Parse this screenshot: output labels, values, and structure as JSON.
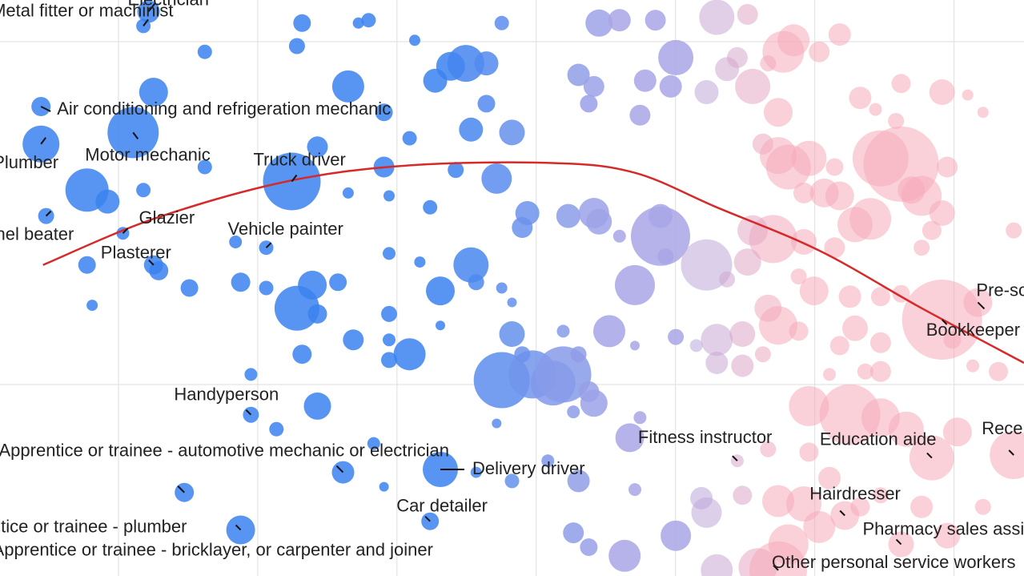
{
  "chart_data": {
    "type": "scatter",
    "title": "",
    "xlabel": "",
    "ylabel": "",
    "xlim": [
      0,
      100
    ],
    "ylim": [
      0,
      100
    ],
    "grid": true,
    "colors": {
      "male_dominated": "#3b82f0",
      "mixed": "#a9a6e6",
      "female_dominated": "#f6a9b9",
      "trend_line": "#d62a2a"
    },
    "trend": [
      [
        4.2,
        54
      ],
      [
        15,
        62
      ],
      [
        28,
        68.5
      ],
      [
        40,
        71.3
      ],
      [
        54,
        71.7
      ],
      [
        62,
        70
      ],
      [
        70,
        64
      ],
      [
        80,
        56.5
      ],
      [
        90,
        46.5
      ],
      [
        100,
        37
      ]
    ],
    "labeled_points": [
      {
        "label": "Electrician",
        "x": 14.5,
        "y": 98,
        "size": 14
      },
      {
        "label": "Metal fitter or machinist",
        "x": 14,
        "y": 95.5,
        "size": 9
      },
      {
        "label": "Air conditioning and refrigeration mechanic",
        "x": 4,
        "y": 81.5,
        "size": 12
      },
      {
        "label": "Motor mechanic",
        "x": 13,
        "y": 77,
        "size": 32
      },
      {
        "label": "Plumber",
        "x": 4,
        "y": 75,
        "size": 23
      },
      {
        "label": "Truck driver",
        "x": 28.5,
        "y": 68.5,
        "size": 36
      },
      {
        "label": "Panel beater",
        "x": 4.5,
        "y": 62.5,
        "size": 10
      },
      {
        "label": "Glazier",
        "x": 12,
        "y": 59.5,
        "size": 8
      },
      {
        "label": "Vehicle painter",
        "x": 26,
        "y": 57,
        "size": 9
      },
      {
        "label": "Plasterer",
        "x": 15,
        "y": 54,
        "size": 12
      },
      {
        "label": "Handyperson",
        "x": 24.5,
        "y": 28,
        "size": 10
      },
      {
        "label": "Apprentice or trainee - automotive mechanic or electrician",
        "x": 33.5,
        "y": 18,
        "size": 14
      },
      {
        "label": "Delivery driver",
        "x": 43,
        "y": 18.5,
        "size": 22
      },
      {
        "label": "Apprentice or trainee - plumber",
        "x": 18,
        "y": 14.5,
        "size": 12
      },
      {
        "label": "Car detailer",
        "x": 42,
        "y": 9.5,
        "size": 11
      },
      {
        "label": "Apprentice or trainee - bricklayer, or carpenter and joiner",
        "x": 23.5,
        "y": 8,
        "size": 18
      },
      {
        "label": "Fitness instructor",
        "x": 72,
        "y": 20,
        "size": 8
      },
      {
        "label": "Education aide",
        "x": 91,
        "y": 20.5,
        "size": 28
      },
      {
        "label": "Receptionist",
        "x": 99,
        "y": 21,
        "size": 30
      },
      {
        "label": "Hairdresser",
        "x": 82.5,
        "y": 10.5,
        "size": 18
      },
      {
        "label": "Pharmacy sales assistant",
        "x": 88,
        "y": 5.5,
        "size": 16
      },
      {
        "label": "Other personal service workers",
        "x": 76,
        "y": 1,
        "size": 36
      },
      {
        "label": "Pre-school teacher",
        "x": 95.5,
        "y": 47.5,
        "size": 18
      },
      {
        "label": "Bookkeeper",
        "x": 92,
        "y": 44.5,
        "size": 50
      }
    ],
    "points": [
      {
        "x": 29.5,
        "y": 96,
        "size": 11
      },
      {
        "x": 36,
        "y": 96.5,
        "size": 9
      },
      {
        "x": 35,
        "y": 96,
        "size": 7
      },
      {
        "x": 40.5,
        "y": 93,
        "size": 7
      },
      {
        "x": 49,
        "y": 96,
        "size": 9
      },
      {
        "x": 58.5,
        "y": 96,
        "size": 17
      },
      {
        "x": 60.5,
        "y": 96.5,
        "size": 14
      },
      {
        "x": 64,
        "y": 96.5,
        "size": 13
      },
      {
        "x": 70,
        "y": 97,
        "size": 22
      },
      {
        "x": 73,
        "y": 97.5,
        "size": 13
      },
      {
        "x": 29,
        "y": 92,
        "size": 10
      },
      {
        "x": 20,
        "y": 91,
        "size": 9
      },
      {
        "x": 44,
        "y": 88.5,
        "size": 18
      },
      {
        "x": 45.5,
        "y": 89,
        "size": 23
      },
      {
        "x": 47.5,
        "y": 89,
        "size": 15
      },
      {
        "x": 42.5,
        "y": 86,
        "size": 15
      },
      {
        "x": 56.5,
        "y": 87,
        "size": 14
      },
      {
        "x": 58,
        "y": 85,
        "size": 13
      },
      {
        "x": 63,
        "y": 86,
        "size": 14
      },
      {
        "x": 66,
        "y": 90,
        "size": 22
      },
      {
        "x": 65.5,
        "y": 85,
        "size": 14
      },
      {
        "x": 15,
        "y": 84,
        "size": 18
      },
      {
        "x": 34,
        "y": 85,
        "size": 20
      },
      {
        "x": 47.5,
        "y": 82,
        "size": 11
      },
      {
        "x": 57.5,
        "y": 82,
        "size": 11
      },
      {
        "x": 62.5,
        "y": 80,
        "size": 13
      },
      {
        "x": 69,
        "y": 84,
        "size": 15
      },
      {
        "x": 73.5,
        "y": 85,
        "size": 22
      },
      {
        "x": 71,
        "y": 88,
        "size": 15
      },
      {
        "x": 37.5,
        "y": 80.5,
        "size": 11
      },
      {
        "x": 46,
        "y": 77.5,
        "size": 15
      },
      {
        "x": 50,
        "y": 77,
        "size": 16
      },
      {
        "x": 40,
        "y": 76,
        "size": 9
      },
      {
        "x": 31,
        "y": 74.5,
        "size": 13
      },
      {
        "x": 20,
        "y": 71,
        "size": 9
      },
      {
        "x": 37.5,
        "y": 71,
        "size": 13
      },
      {
        "x": 44.5,
        "y": 70.5,
        "size": 10
      },
      {
        "x": 48.5,
        "y": 69,
        "size": 19
      },
      {
        "x": 8.5,
        "y": 67,
        "size": 27
      },
      {
        "x": 10.5,
        "y": 65,
        "size": 15
      },
      {
        "x": 14,
        "y": 67,
        "size": 9
      },
      {
        "x": 34,
        "y": 66.5,
        "size": 7
      },
      {
        "x": 38,
        "y": 66,
        "size": 7
      },
      {
        "x": 42,
        "y": 64,
        "size": 9
      },
      {
        "x": 51.5,
        "y": 63,
        "size": 15
      },
      {
        "x": 51,
        "y": 60.5,
        "size": 13
      },
      {
        "x": 55.5,
        "y": 62.5,
        "size": 15
      },
      {
        "x": 58,
        "y": 63,
        "size": 19
      },
      {
        "x": 58.5,
        "y": 61.5,
        "size": 16
      },
      {
        "x": 60.5,
        "y": 59,
        "size": 8
      },
      {
        "x": 64.5,
        "y": 59,
        "size": 37
      },
      {
        "x": 64.5,
        "y": 62.5,
        "size": 15
      },
      {
        "x": 65,
        "y": 55.5,
        "size": 10
      },
      {
        "x": 69,
        "y": 54,
        "size": 32
      },
      {
        "x": 71,
        "y": 51.5,
        "size": 10
      },
      {
        "x": 23,
        "y": 58,
        "size": 8
      },
      {
        "x": 38,
        "y": 56,
        "size": 8
      },
      {
        "x": 41,
        "y": 54.5,
        "size": 7
      },
      {
        "x": 46,
        "y": 54,
        "size": 22
      },
      {
        "x": 46.5,
        "y": 51,
        "size": 10
      },
      {
        "x": 8.5,
        "y": 54,
        "size": 11
      },
      {
        "x": 15.5,
        "y": 53,
        "size": 12
      },
      {
        "x": 18.5,
        "y": 50,
        "size": 11
      },
      {
        "x": 23.5,
        "y": 51,
        "size": 12
      },
      {
        "x": 26,
        "y": 50,
        "size": 9
      },
      {
        "x": 30.5,
        "y": 50.5,
        "size": 18
      },
      {
        "x": 33,
        "y": 51,
        "size": 11
      },
      {
        "x": 43,
        "y": 49.5,
        "size": 18
      },
      {
        "x": 49,
        "y": 50,
        "size": 7
      },
      {
        "x": 62,
        "y": 50.5,
        "size": 25
      },
      {
        "x": 9,
        "y": 47,
        "size": 7
      },
      {
        "x": 29,
        "y": 46.5,
        "size": 28
      },
      {
        "x": 31,
        "y": 45.5,
        "size": 12
      },
      {
        "x": 38,
        "y": 45.5,
        "size": 10
      },
      {
        "x": 43,
        "y": 43.5,
        "size": 6
      },
      {
        "x": 50,
        "y": 47.5,
        "size": 6
      },
      {
        "x": 34.5,
        "y": 41,
        "size": 13
      },
      {
        "x": 38,
        "y": 41,
        "size": 8
      },
      {
        "x": 40,
        "y": 38.5,
        "size": 20
      },
      {
        "x": 50,
        "y": 42,
        "size": 16
      },
      {
        "x": 55,
        "y": 42.5,
        "size": 8
      },
      {
        "x": 59.5,
        "y": 42.5,
        "size": 20
      },
      {
        "x": 62,
        "y": 40,
        "size": 6
      },
      {
        "x": 29.5,
        "y": 38.5,
        "size": 12
      },
      {
        "x": 24.5,
        "y": 35,
        "size": 8
      },
      {
        "x": 38,
        "y": 37.5,
        "size": 10
      },
      {
        "x": 49,
        "y": 34,
        "size": 35
      },
      {
        "x": 52,
        "y": 35,
        "size": 30
      },
      {
        "x": 54,
        "y": 33.5,
        "size": 28
      },
      {
        "x": 55,
        "y": 35,
        "size": 35
      },
      {
        "x": 56.5,
        "y": 38.5,
        "size": 10
      },
      {
        "x": 57.5,
        "y": 32,
        "size": 13
      },
      {
        "x": 58,
        "y": 30,
        "size": 17
      },
      {
        "x": 51,
        "y": 38.5,
        "size": 10
      },
      {
        "x": 66,
        "y": 41.5,
        "size": 10
      },
      {
        "x": 68,
        "y": 40,
        "size": 8
      },
      {
        "x": 70,
        "y": 37,
        "size": 14
      },
      {
        "x": 31,
        "y": 29.5,
        "size": 17
      },
      {
        "x": 27,
        "y": 25.5,
        "size": 9
      },
      {
        "x": 48.5,
        "y": 26.5,
        "size": 6
      },
      {
        "x": 56,
        "y": 28.5,
        "size": 8
      },
      {
        "x": 62.5,
        "y": 27.5,
        "size": 8
      },
      {
        "x": 61.5,
        "y": 24,
        "size": 18
      },
      {
        "x": 36.5,
        "y": 23,
        "size": 8
      },
      {
        "x": 46.5,
        "y": 18,
        "size": 7
      },
      {
        "x": 50,
        "y": 16.5,
        "size": 9
      },
      {
        "x": 53.5,
        "y": 20,
        "size": 8
      },
      {
        "x": 56.5,
        "y": 16.5,
        "size": 14
      },
      {
        "x": 62,
        "y": 15,
        "size": 8
      },
      {
        "x": 37.5,
        "y": 15.5,
        "size": 6
      },
      {
        "x": 56,
        "y": 7.5,
        "size": 13
      },
      {
        "x": 57.5,
        "y": 5,
        "size": 11
      },
      {
        "x": 61,
        "y": 3.5,
        "size": 20
      },
      {
        "x": 66,
        "y": 7,
        "size": 19
      },
      {
        "x": 68.5,
        "y": 13.5,
        "size": 14
      },
      {
        "x": 69,
        "y": 11,
        "size": 19
      },
      {
        "x": 74,
        "y": 1.5,
        "size": 24
      },
      {
        "x": 70,
        "y": 1,
        "size": 20
      },
      {
        "x": 72,
        "y": 90,
        "size": 13
      },
      {
        "x": 75,
        "y": 89,
        "size": 10
      },
      {
        "x": 76.5,
        "y": 91,
        "size": 26
      },
      {
        "x": 77.5,
        "y": 93,
        "size": 20
      },
      {
        "x": 80,
        "y": 91,
        "size": 13
      },
      {
        "x": 82,
        "y": 94,
        "size": 14
      },
      {
        "x": 84,
        "y": 83,
        "size": 14
      },
      {
        "x": 76,
        "y": 80.5,
        "size": 18
      },
      {
        "x": 74.5,
        "y": 75,
        "size": 13
      },
      {
        "x": 76,
        "y": 73,
        "size": 23
      },
      {
        "x": 77,
        "y": 71,
        "size": 28
      },
      {
        "x": 79,
        "y": 72.5,
        "size": 22
      },
      {
        "x": 81.5,
        "y": 71,
        "size": 11
      },
      {
        "x": 78.5,
        "y": 66.5,
        "size": 13
      },
      {
        "x": 80.5,
        "y": 66.5,
        "size": 18
      },
      {
        "x": 82,
        "y": 66,
        "size": 18
      },
      {
        "x": 86,
        "y": 72.5,
        "size": 35
      },
      {
        "x": 88,
        "y": 71.5,
        "size": 47
      },
      {
        "x": 90,
        "y": 66,
        "size": 25
      },
      {
        "x": 92,
        "y": 63,
        "size": 16
      },
      {
        "x": 91,
        "y": 60,
        "size": 12
      },
      {
        "x": 89,
        "y": 67,
        "size": 17
      },
      {
        "x": 85,
        "y": 62,
        "size": 26
      },
      {
        "x": 83.5,
        "y": 61,
        "size": 22
      },
      {
        "x": 81.5,
        "y": 57,
        "size": 13
      },
      {
        "x": 78.5,
        "y": 58,
        "size": 16
      },
      {
        "x": 75.5,
        "y": 58.5,
        "size": 30
      },
      {
        "x": 73.5,
        "y": 60,
        "size": 19
      },
      {
        "x": 73,
        "y": 54.5,
        "size": 17
      },
      {
        "x": 78,
        "y": 52,
        "size": 10
      },
      {
        "x": 79.5,
        "y": 49.5,
        "size": 18
      },
      {
        "x": 83,
        "y": 48.5,
        "size": 14
      },
      {
        "x": 86,
        "y": 48.5,
        "size": 12
      },
      {
        "x": 75,
        "y": 46.5,
        "size": 17
      },
      {
        "x": 76,
        "y": 43.5,
        "size": 24
      },
      {
        "x": 78,
        "y": 42.5,
        "size": 12
      },
      {
        "x": 72.5,
        "y": 42,
        "size": 16
      },
      {
        "x": 70,
        "y": 41,
        "size": 20
      },
      {
        "x": 74.5,
        "y": 38.5,
        "size": 10
      },
      {
        "x": 72.5,
        "y": 36.5,
        "size": 14
      },
      {
        "x": 86,
        "y": 40.5,
        "size": 13
      },
      {
        "x": 82,
        "y": 40,
        "size": 12
      },
      {
        "x": 81,
        "y": 35,
        "size": 8
      },
      {
        "x": 84.5,
        "y": 35.5,
        "size": 10
      },
      {
        "x": 86,
        "y": 35.5,
        "size": 13
      },
      {
        "x": 88,
        "y": 49,
        "size": 11
      },
      {
        "x": 93,
        "y": 41,
        "size": 11
      },
      {
        "x": 83.5,
        "y": 43,
        "size": 16
      },
      {
        "x": 79,
        "y": 29.5,
        "size": 25
      },
      {
        "x": 83,
        "y": 28,
        "size": 38
      },
      {
        "x": 86,
        "y": 27.5,
        "size": 24
      },
      {
        "x": 88.5,
        "y": 25.5,
        "size": 22
      },
      {
        "x": 93.5,
        "y": 25,
        "size": 18
      },
      {
        "x": 79,
        "y": 21.5,
        "size": 12
      },
      {
        "x": 75,
        "y": 22,
        "size": 10
      },
      {
        "x": 81,
        "y": 17,
        "size": 14
      },
      {
        "x": 76,
        "y": 13,
        "size": 20
      },
      {
        "x": 78.5,
        "y": 12.5,
        "size": 22
      },
      {
        "x": 80,
        "y": 8.5,
        "size": 20
      },
      {
        "x": 77,
        "y": 5.5,
        "size": 25
      },
      {
        "x": 72.5,
        "y": 14,
        "size": 12
      },
      {
        "x": 84,
        "y": 12,
        "size": 12
      },
      {
        "x": 86,
        "y": 14,
        "size": 10
      },
      {
        "x": 90,
        "y": 12,
        "size": 14
      },
      {
        "x": 92.5,
        "y": 7,
        "size": 16
      },
      {
        "x": 96,
        "y": 12,
        "size": 10
      },
      {
        "x": 97.5,
        "y": 35.5,
        "size": 12
      },
      {
        "x": 95,
        "y": 36.5,
        "size": 8
      },
      {
        "x": 99,
        "y": 60,
        "size": 10
      },
      {
        "x": 88,
        "y": 85.5,
        "size": 12
      },
      {
        "x": 92,
        "y": 84,
        "size": 16
      },
      {
        "x": 94.5,
        "y": 83.5,
        "size": 7
      },
      {
        "x": 85.5,
        "y": 81,
        "size": 8
      },
      {
        "x": 87.5,
        "y": 79,
        "size": 10
      },
      {
        "x": 96,
        "y": 80.5,
        "size": 7
      },
      {
        "x": 92.5,
        "y": 71,
        "size": 13
      },
      {
        "x": 90,
        "y": 57,
        "size": 10
      }
    ]
  }
}
